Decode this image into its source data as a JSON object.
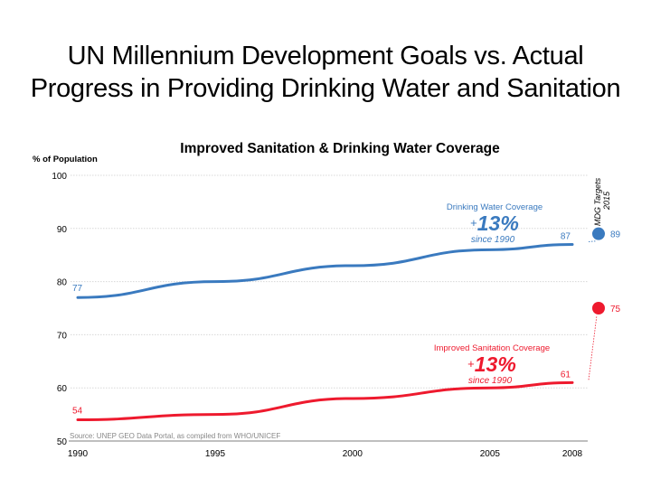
{
  "slide": {
    "title_line1": "UN Millennium Development Goals vs. Actual",
    "title_line2": "Progress in Providing Drinking Water and Sanitation"
  },
  "colors": {
    "water": "#3a7abf",
    "sanitation": "#ee1a2e",
    "grid": "#d8d8d8",
    "axis": "#999999",
    "text": "#000000",
    "source": "#888888"
  },
  "chart_data": {
    "type": "line",
    "title": "Improved Sanitation & Drinking Water Coverage",
    "ylabel": "% of Population",
    "xlabel": "",
    "ylim": [
      50,
      100
    ],
    "yticks": [
      50,
      60,
      70,
      80,
      90,
      100
    ],
    "xlim": [
      1990,
      2008
    ],
    "xticks": [
      1990,
      1995,
      2000,
      2005,
      2008
    ],
    "grid": true,
    "source": "Source: UNEP GEO Data Portal, as compiled from WHO/UNICEF",
    "target_label_line1": "MDG Targets",
    "target_label_line2": "2015",
    "series": [
      {
        "name": "Drinking Water Coverage",
        "key": "water",
        "x": [
          1990,
          1995,
          2000,
          2005,
          2008
        ],
        "values": [
          77,
          80,
          83,
          86,
          87
        ],
        "start_label": "77",
        "end_label": "87",
        "target": 89,
        "target_label": "89",
        "annotation_title": "Drinking Water Coverage",
        "annotation_change": "+13%",
        "annotation_change_sign": "+",
        "annotation_change_value": "13%",
        "annotation_since": "since 1990"
      },
      {
        "name": "Improved Sanitation Coverage",
        "key": "sanitation",
        "x": [
          1990,
          1995,
          2000,
          2005,
          2008
        ],
        "values": [
          54,
          55,
          58,
          60,
          61
        ],
        "start_label": "54",
        "end_label": "61",
        "target": 75,
        "target_label": "75",
        "annotation_title": "Improved Sanitation Coverage",
        "annotation_change": "+13%",
        "annotation_change_sign": "+",
        "annotation_change_value": "13%",
        "annotation_since": "since 1990"
      }
    ]
  }
}
